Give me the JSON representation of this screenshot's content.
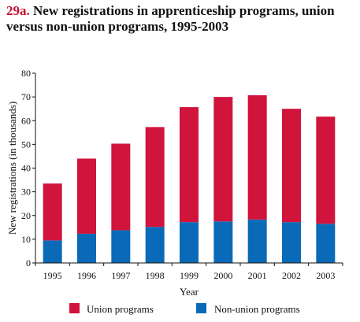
{
  "figure": {
    "number": "29a.",
    "title_line1": "New registrations in apprenticeship programs, union",
    "title_line2": "versus non-union programs, 1995-2003"
  },
  "colors": {
    "union": "#d0143c",
    "non_union": "#0a6ab8",
    "figure_number": "#c8102e"
  },
  "chart_data": {
    "type": "bar",
    "stacked": true,
    "categories": [
      "1995",
      "1996",
      "1997",
      "1998",
      "1999",
      "2000",
      "2001",
      "2002",
      "2003"
    ],
    "series": [
      {
        "name": "Non-union programs",
        "values": [
          9.5,
          12.3,
          13.8,
          15.2,
          17.2,
          17.5,
          18.3,
          17.2,
          16.5
        ]
      },
      {
        "name": "Union programs",
        "values": [
          24.0,
          31.7,
          36.5,
          42.1,
          48.5,
          52.5,
          52.4,
          47.8,
          45.2
        ]
      }
    ],
    "xlabel": "Year",
    "ylabel": "New registrations (in thousands)",
    "ylim": [
      0,
      80
    ],
    "yticks": [
      0,
      10,
      20,
      30,
      40,
      50,
      60,
      70,
      80
    ],
    "grid": false,
    "legend_position": "bottom",
    "legend": [
      {
        "label": "Union programs",
        "color_key": "union"
      },
      {
        "label": "Non-union programs",
        "color_key": "non_union"
      }
    ]
  }
}
